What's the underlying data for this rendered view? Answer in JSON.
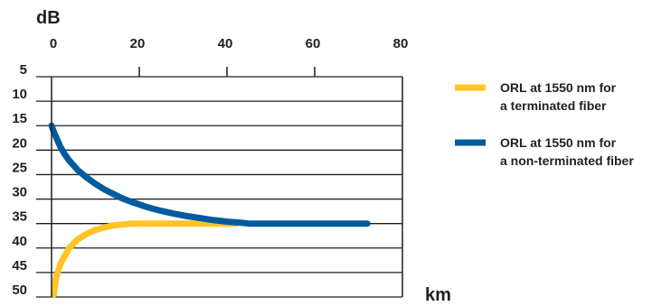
{
  "chart_data": {
    "type": "line",
    "x_unit": "km",
    "y_unit": "dB",
    "x_ticks": [
      "0",
      "20",
      "40",
      "60",
      "80"
    ],
    "y_ticks": [
      "5",
      "10",
      "15",
      "20",
      "25",
      "30",
      "35",
      "40",
      "45",
      "50"
    ],
    "xlim": [
      0,
      80
    ],
    "ylim_top_to_bottom": [
      5,
      50
    ],
    "y_inverted": true,
    "grid": "horizontal",
    "legend_position": "right",
    "series": [
      {
        "name_lines": [
          "ORL at 1550 nm for",
          "a terminated fiber"
        ],
        "color": "#ffc425",
        "x": [
          0.5,
          1,
          2,
          4,
          6,
          8,
          10,
          12,
          14,
          16,
          18,
          20,
          22,
          25,
          30,
          35,
          40,
          42
        ],
        "y": [
          49.5,
          46,
          43.3,
          40,
          38.2,
          37.1,
          36.3,
          35.8,
          35.4,
          35.2,
          35.05,
          35,
          35,
          35,
          35,
          35,
          35,
          35
        ]
      },
      {
        "name_lines": [
          "ORL at 1550 nm for",
          "a non-terminated fiber"
        ],
        "color": "#005b9e",
        "x": [
          0,
          0.5,
          1,
          2,
          3,
          4,
          6,
          8,
          10,
          12,
          14,
          16,
          18,
          20,
          22,
          25,
          28,
          31,
          34,
          37,
          40,
          43,
          45,
          50,
          55,
          60,
          65,
          70,
          72
        ],
        "y": [
          15,
          16.2,
          17.3,
          19.3,
          20.8,
          22.1,
          24.1,
          25.6,
          26.9,
          28,
          28.9,
          29.8,
          30.5,
          31.1,
          31.7,
          32.4,
          33,
          33.5,
          33.9,
          34.3,
          34.6,
          34.8,
          35,
          35,
          35,
          35,
          35,
          35,
          35
        ]
      }
    ]
  }
}
